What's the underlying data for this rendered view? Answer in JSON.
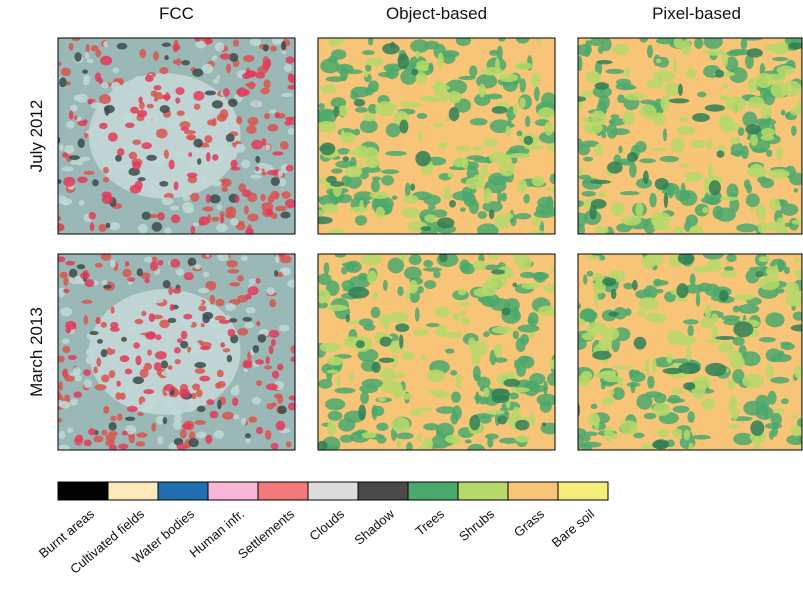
{
  "columns": [
    "FCC",
    "Object-based",
    "Pixel-based"
  ],
  "rows": [
    "July 2012",
    "March 2013"
  ],
  "legend": [
    {
      "label": "Burnt areas",
      "color": "#000000"
    },
    {
      "label": "Cultivated fields",
      "color": "#fde9b9"
    },
    {
      "label": "Water bodies",
      "color": "#1f6fb2"
    },
    {
      "label": "Human infr.",
      "color": "#f9b6d6"
    },
    {
      "label": "Settlements",
      "color": "#f47a7a"
    },
    {
      "label": "Clouds",
      "color": "#dcdcdc"
    },
    {
      "label": "Shadow",
      "color": "#4a4a4a"
    },
    {
      "label": "Trees",
      "color": "#4aa96c"
    },
    {
      "label": "Shrubs",
      "color": "#b6d96a"
    },
    {
      "label": "Grass",
      "color": "#f8c478"
    },
    {
      "label": "Bare soil",
      "color": "#f6ee7a"
    }
  ]
}
